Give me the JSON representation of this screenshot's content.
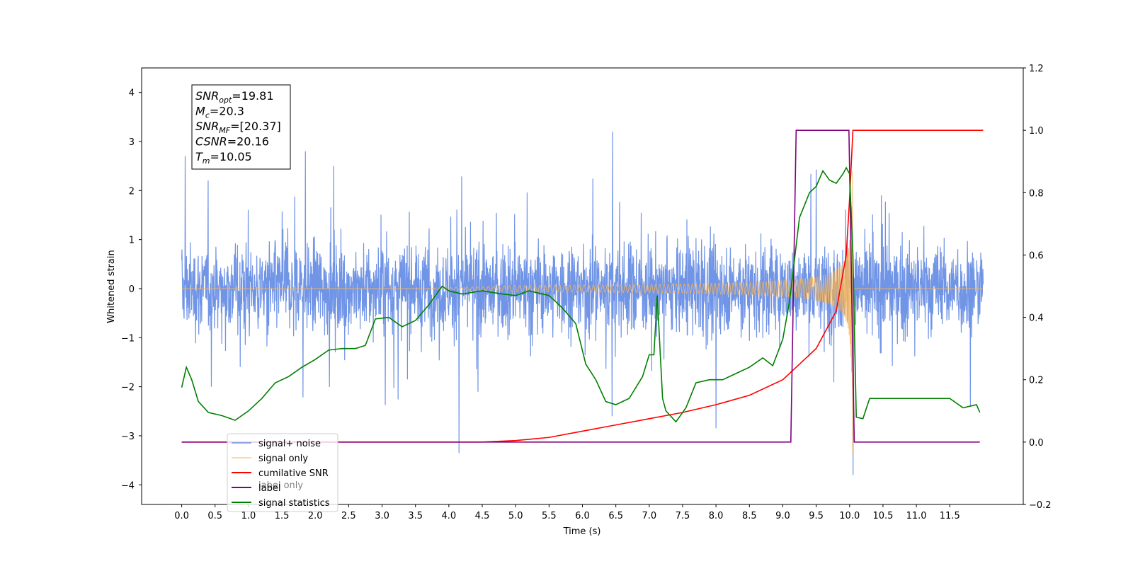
{
  "chart_data": {
    "type": "line",
    "xlabel": "Time (s)",
    "ylabel": "Whitened strain",
    "xlim": [
      -0.6,
      12.6
    ],
    "ylim_left": [
      -4.4,
      4.5
    ],
    "ylim_right": [
      -0.2,
      1.2
    ],
    "x_ticks": [
      "0.0",
      "0.5",
      "1.0",
      "1.5",
      "2.0",
      "2.5",
      "3.0",
      "3.5",
      "4.0",
      "4.5",
      "5.0",
      "5.5",
      "6.0",
      "6.5",
      "7.0",
      "7.5",
      "8.0",
      "8.5",
      "9.0",
      "9.5",
      "10.0",
      "10.5",
      "11.0",
      "11.5"
    ],
    "y_ticks_left": [
      "4",
      "3",
      "2",
      "1",
      "0",
      "−1",
      "−2",
      "−3",
      "−4"
    ],
    "y_ticks_right": [
      "1.2",
      "1.0",
      "0.8",
      "0.6",
      "0.4",
      "0.2",
      "0.0",
      "−0.2"
    ],
    "annotation": [
      {
        "sym": "SNR",
        "sub": "opt",
        "val": "=19.81"
      },
      {
        "sym": "M",
        "sub": "c",
        "val": "=20.3"
      },
      {
        "sym": "SNR",
        "sub": "MF",
        "val": "=[20.37]"
      },
      {
        "sym": "CSNR",
        "sub": "",
        "val": "=20.16"
      },
      {
        "sym": "T",
        "sub": "m",
        "val": "=10.05"
      }
    ],
    "legend": {
      "placement": "lower-left",
      "entries": [
        "signal+ noise",
        "signal only",
        "cumilative SNR",
        "label",
        "signal statistics"
      ],
      "hidden_behind_text": [
        "label only"
      ]
    },
    "series": [
      {
        "name": "signal+ noise",
        "axis": "left",
        "color": "#7094e6",
        "x_range": [
          0.0,
          12.0
        ],
        "noise_band": [
          -1.1,
          1.2
        ],
        "spikes": [
          [
            0.05,
            2.7
          ],
          [
            1.85,
            2.8
          ],
          [
            4.15,
            -3.35
          ],
          [
            6.45,
            3.2
          ],
          [
            8.0,
            -2.85
          ],
          [
            10.05,
            4.1
          ],
          [
            10.05,
            -3.8
          ]
        ],
        "envelope_max": 4.1,
        "envelope_min": -3.8
      },
      {
        "name": "signal only",
        "axis": "left",
        "color": "#f5b45a",
        "x_range": [
          0.0,
          12.0
        ],
        "chirp_end": 10.05,
        "amplitude_at_end": 3.5,
        "amplitude_at_5s": 0.03
      },
      {
        "name": "cumilative SNR",
        "axis": "right",
        "color": "#ff0000",
        "x": [
          0.0,
          4.5,
          5.0,
          5.5,
          6.0,
          6.5,
          7.0,
          7.5,
          8.0,
          8.5,
          9.0,
          9.5,
          9.8,
          9.95,
          10.0,
          10.05,
          12.0
        ],
        "y": [
          0.0,
          0.0,
          0.005,
          0.015,
          0.035,
          0.055,
          0.075,
          0.095,
          0.12,
          0.15,
          0.2,
          0.3,
          0.42,
          0.6,
          0.78,
          1.0,
          1.0
        ]
      },
      {
        "name": "label",
        "axis": "right",
        "color": "#800080",
        "x": [
          0.0,
          9.12,
          9.2,
          9.99,
          10.07,
          11.95
        ],
        "y": [
          0.0,
          0.0,
          1.0,
          1.0,
          0.0,
          0.0
        ]
      },
      {
        "name": "signal statistics",
        "axis": "right",
        "color": "#008000",
        "x": [
          0.0,
          0.07,
          0.15,
          0.25,
          0.4,
          0.6,
          0.8,
          1.0,
          1.2,
          1.4,
          1.6,
          1.8,
          2.0,
          2.2,
          2.4,
          2.6,
          2.75,
          2.9,
          3.1,
          3.3,
          3.5,
          3.7,
          3.9,
          4.0,
          4.2,
          4.5,
          4.8,
          5.0,
          5.2,
          5.5,
          5.7,
          5.9,
          6.05,
          6.2,
          6.35,
          6.5,
          6.7,
          6.9,
          7.0,
          7.07,
          7.12,
          7.2,
          7.25,
          7.4,
          7.55,
          7.7,
          7.9,
          8.1,
          8.3,
          8.5,
          8.7,
          8.85,
          9.0,
          9.1,
          9.25,
          9.4,
          9.5,
          9.6,
          9.7,
          9.8,
          9.9,
          9.95,
          10.0,
          10.05,
          10.1,
          10.2,
          10.3,
          10.5,
          10.7,
          10.9,
          11.1,
          11.3,
          11.5,
          11.7,
          11.9,
          11.95
        ],
        "y": [
          0.175,
          0.24,
          0.2,
          0.13,
          0.095,
          0.085,
          0.07,
          0.1,
          0.14,
          0.19,
          0.21,
          0.24,
          0.265,
          0.295,
          0.3,
          0.3,
          0.31,
          0.395,
          0.4,
          0.37,
          0.39,
          0.44,
          0.5,
          0.485,
          0.475,
          0.485,
          0.475,
          0.47,
          0.485,
          0.47,
          0.43,
          0.38,
          0.25,
          0.2,
          0.13,
          0.12,
          0.14,
          0.21,
          0.28,
          0.28,
          0.47,
          0.14,
          0.1,
          0.065,
          0.11,
          0.19,
          0.2,
          0.2,
          0.22,
          0.24,
          0.27,
          0.245,
          0.33,
          0.45,
          0.72,
          0.8,
          0.82,
          0.87,
          0.84,
          0.83,
          0.86,
          0.88,
          0.86,
          0.6,
          0.08,
          0.075,
          0.14,
          0.14,
          0.14,
          0.14,
          0.14,
          0.14,
          0.14,
          0.11,
          0.12,
          0.095
        ]
      }
    ],
    "grid": false
  }
}
